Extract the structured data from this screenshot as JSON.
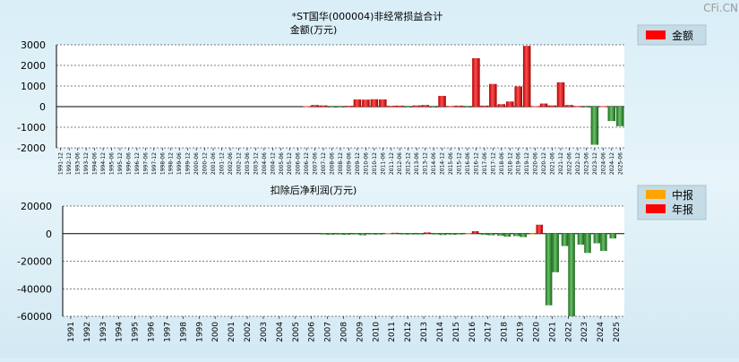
{
  "watermark": "CFi.CN",
  "chart_data": [
    {
      "type": "bar",
      "title": "*ST国华(000004)非经常损益合计",
      "ylabel": "金额(万元)",
      "ylim": [
        -2000,
        3000
      ],
      "yticks": [
        "3000",
        "2000",
        "1000",
        "0",
        "-1000",
        "-2000"
      ],
      "grid": true,
      "legend": [
        {
          "label": "金额",
          "color": "#ff0000"
        }
      ],
      "legend_position": "top-right",
      "categories": [
        "1991-12",
        "1992-12",
        "1993-06",
        "1993-12",
        "1994-06",
        "1994-12",
        "1995-06",
        "1995-12",
        "1996-06",
        "1996-12",
        "1997-06",
        "1997-12",
        "1998-06",
        "1998-12",
        "1999-06",
        "1999-12",
        "2000-06",
        "2000-12",
        "2001-06",
        "2001-12",
        "2002-06",
        "2002-12",
        "2003-06",
        "2003-12",
        "2004-06",
        "2004-12",
        "2005-06",
        "2005-12",
        "2006-06",
        "2006-12",
        "2007-06",
        "2007-12",
        "2008-06",
        "2008-12",
        "2009-06",
        "2009-12",
        "2010-06",
        "2010-12",
        "2011-06",
        "2011-12",
        "2012-06",
        "2012-12",
        "2013-06",
        "2013-12",
        "2014-06",
        "2014-12",
        "2015-06",
        "2015-12",
        "2016-06",
        "2016-12",
        "2017-06",
        "2017-12",
        "2018-06",
        "2018-12",
        "2019-06",
        "2019-12",
        "2020-06",
        "2020-12",
        "2021-06",
        "2021-12",
        "2022-06",
        "2022-12",
        "2023-06",
        "2023-12",
        "2024-06",
        "2024-12",
        "2025-06"
      ],
      "values": [
        0,
        0,
        0,
        0,
        0,
        0,
        0,
        0,
        0,
        0,
        0,
        0,
        0,
        0,
        0,
        0,
        0,
        0,
        0,
        0,
        0,
        0,
        0,
        0,
        0,
        0,
        0,
        0,
        0,
        20,
        80,
        60,
        -20,
        -30,
        40,
        350,
        340,
        360,
        350,
        40,
        50,
        -40,
        60,
        80,
        -50,
        520,
        30,
        50,
        -30,
        2350,
        50,
        1100,
        120,
        250,
        980,
        2950,
        20,
        150,
        60,
        1180,
        80,
        30,
        -30,
        -1850,
        20,
        -700,
        -950
      ]
    },
    {
      "type": "bar",
      "title": "扣除后净利润(万元)",
      "ylim": [
        -60000,
        20000
      ],
      "yticks": [
        "20000",
        "0",
        "-20000",
        "-40000",
        "-60000"
      ],
      "grid": true,
      "legend": [
        {
          "label": "中报",
          "color": "#ffa500"
        },
        {
          "label": "年报",
          "color": "#ff0000"
        }
      ],
      "legend_position": "top-right",
      "categories": [
        "1991",
        "1992",
        "1993",
        "1994",
        "1995",
        "1996",
        "1997",
        "1998",
        "1999",
        "2000",
        "2001",
        "2002",
        "2003",
        "2004",
        "2005",
        "2006",
        "2007",
        "2008",
        "2009",
        "2010",
        "2011",
        "2012",
        "2013",
        "2014",
        "2015",
        "2016",
        "2017",
        "2018",
        "2019",
        "2020",
        "2021",
        "2022",
        "2023",
        "2024",
        "2025"
      ],
      "series": [
        {
          "name": "中报",
          "values": [
            null,
            null,
            null,
            null,
            null,
            null,
            null,
            null,
            null,
            null,
            null,
            null,
            null,
            null,
            null,
            null,
            -500,
            -700,
            -600,
            -400,
            300,
            -200,
            -400,
            -600,
            -800,
            200,
            -900,
            -1500,
            -1800,
            100,
            -52000,
            -9000,
            -8000,
            -7000,
            -3500
          ]
        },
        {
          "name": "年报",
          "values": [
            null,
            null,
            null,
            null,
            null,
            null,
            null,
            null,
            null,
            null,
            null,
            null,
            null,
            null,
            null,
            null,
            -800,
            -900,
            -1200,
            -700,
            600,
            -400,
            900,
            -1000,
            -500,
            1800,
            -1200,
            -2200,
            -2500,
            6500,
            -28000,
            -60000,
            -14000,
            -12500,
            null
          ]
        }
      ]
    }
  ]
}
